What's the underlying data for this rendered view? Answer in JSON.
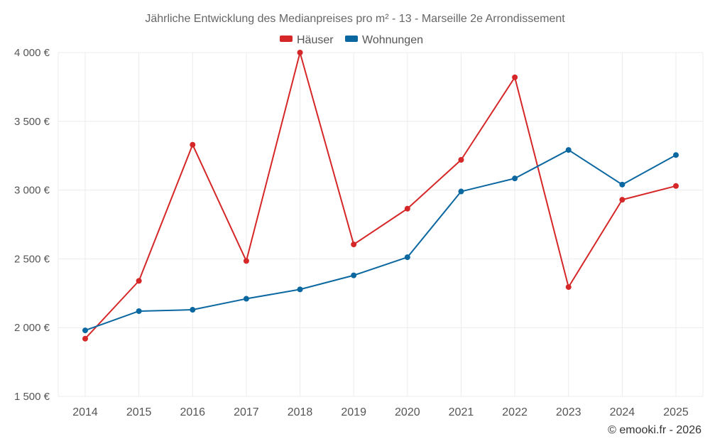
{
  "chart_data": {
    "type": "line",
    "title": "Jährliche Entwicklung des Medianpreises pro m² - 13 - Marseille 2e Arrondissement",
    "categories": [
      "2014",
      "2015",
      "2016",
      "2017",
      "2018",
      "2019",
      "2020",
      "2021",
      "2022",
      "2023",
      "2024",
      "2025"
    ],
    "series": [
      {
        "name": "Häuser",
        "color": "#d62728",
        "values": [
          1920,
          2340,
          3330,
          2485,
          4000,
          2605,
          2865,
          3220,
          3820,
          2295,
          2930,
          3030
        ]
      },
      {
        "name": "Wohnungen",
        "color": "#0b67a0",
        "values": [
          1980,
          2120,
          2130,
          2210,
          2278,
          2380,
          2512,
          2990,
          3085,
          3292,
          3040,
          3255
        ]
      }
    ],
    "ylim": [
      1500,
      4000
    ],
    "yticks": [
      {
        "value": 1500,
        "label": "1 500 €"
      },
      {
        "value": 2000,
        "label": "2 000 €"
      },
      {
        "value": 2500,
        "label": "2 500 €"
      },
      {
        "value": 3000,
        "label": "3 000 €"
      },
      {
        "value": 3500,
        "label": "3 500 €"
      },
      {
        "value": 4000,
        "label": "4 000 €"
      }
    ],
    "legend_position": "top-center",
    "grid": true,
    "xlabel": "",
    "ylabel": ""
  },
  "footer": "© emooki.fr - 2026"
}
